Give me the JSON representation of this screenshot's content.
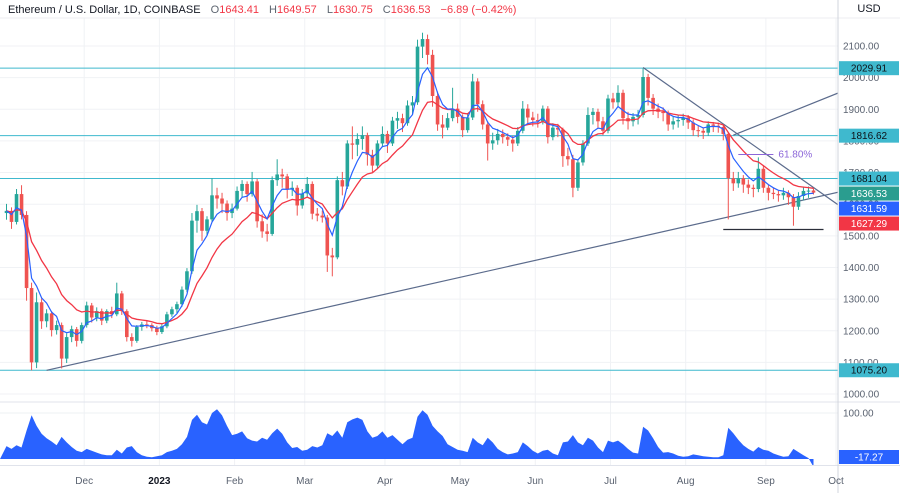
{
  "header": {
    "title": "Ethereum / U.S. Dollar, 1D, COINBASE",
    "o_label": "O",
    "o": "1643.41",
    "h_label": "H",
    "h": "1649.57",
    "l_label": "L",
    "l": "1630.75",
    "c_label": "C",
    "c": "1636.53",
    "change": "−6.89 (−0.42%)"
  },
  "axis": {
    "currency": "USD",
    "price_ticks": [
      2100,
      2000,
      1900,
      1800,
      1700,
      1600,
      1500,
      1400,
      1300,
      1200,
      1100,
      1000
    ],
    "osc_ticks": [
      100
    ],
    "months": [
      {
        "label": "Dec",
        "bar": 17
      },
      {
        "label": "2023",
        "bar": 32,
        "bold": true
      },
      {
        "label": "Feb",
        "bar": 47
      },
      {
        "label": "Mar",
        "bar": 61
      },
      {
        "label": "Apr",
        "bar": 77
      },
      {
        "label": "May",
        "bar": 92
      },
      {
        "label": "Jun",
        "bar": 107
      },
      {
        "label": "Jul",
        "bar": 122
      },
      {
        "label": "Aug",
        "bar": 137
      },
      {
        "label": "Sep",
        "bar": 153
      },
      {
        "label": "Oct",
        "bar": 167
      }
    ]
  },
  "chart_data": [
    {
      "type": "candlestick",
      "title": "Ethereum / U.S. Dollar, 1D, COINBASE",
      "x_unit": "2-day bars, Nov 2022 - Sep 2023",
      "ylim": [
        980,
        2190
      ],
      "up_color": "#26a69a",
      "down_color": "#ef5350",
      "ohlc": [
        [
          1572,
          1601,
          1551,
          1579
        ],
        [
          1579,
          1590,
          1522,
          1544
        ],
        [
          1544,
          1648,
          1536,
          1632
        ],
        [
          1632,
          1660,
          1552,
          1566
        ],
        [
          1566,
          1578,
          1295,
          1335
        ],
        [
          1335,
          1352,
          1075,
          1100
        ],
        [
          1100,
          1321,
          1082,
          1290
        ],
        [
          1290,
          1302,
          1206,
          1230
        ],
        [
          1230,
          1268,
          1211,
          1255
        ],
        [
          1255,
          1262,
          1182,
          1202
        ],
        [
          1202,
          1232,
          1188,
          1218
        ],
        [
          1218,
          1226,
          1081,
          1112
        ],
        [
          1112,
          1192,
          1098,
          1180
        ],
        [
          1180,
          1216,
          1164,
          1205
        ],
        [
          1205,
          1212,
          1150,
          1168
        ],
        [
          1168,
          1226,
          1160,
          1218
        ],
        [
          1218,
          1292,
          1210,
          1280
        ],
        [
          1280,
          1288,
          1226,
          1242
        ],
        [
          1242,
          1274,
          1230,
          1262
        ],
        [
          1262,
          1270,
          1218,
          1232
        ],
        [
          1232,
          1268,
          1224,
          1262
        ],
        [
          1262,
          1276,
          1240,
          1252
        ],
        [
          1252,
          1352,
          1246,
          1318
        ],
        [
          1318,
          1326,
          1250,
          1262
        ],
        [
          1262,
          1268,
          1166,
          1180
        ],
        [
          1180,
          1192,
          1150,
          1168
        ],
        [
          1168,
          1218,
          1162,
          1212
        ],
        [
          1212,
          1228,
          1200,
          1220
        ],
        [
          1220,
          1230,
          1208,
          1218
        ],
        [
          1218,
          1224,
          1198,
          1208
        ],
        [
          1208,
          1216,
          1186,
          1196
        ],
        [
          1196,
          1222,
          1190,
          1214
        ],
        [
          1214,
          1260,
          1208,
          1252
        ],
        [
          1252,
          1276,
          1244,
          1268
        ],
        [
          1268,
          1292,
          1256,
          1284
        ],
        [
          1284,
          1340,
          1276,
          1330
        ],
        [
          1330,
          1398,
          1322,
          1388
        ],
        [
          1388,
          1572,
          1380,
          1548
        ],
        [
          1548,
          1598,
          1510,
          1578
        ],
        [
          1578,
          1588,
          1484,
          1516
        ],
        [
          1516,
          1562,
          1500,
          1552
        ],
        [
          1552,
          1682,
          1544,
          1628
        ],
        [
          1628,
          1652,
          1586,
          1618
        ],
        [
          1618,
          1636,
          1572,
          1602
        ],
        [
          1602,
          1612,
          1548,
          1572
        ],
        [
          1572,
          1602,
          1556,
          1586
        ],
        [
          1586,
          1656,
          1580,
          1642
        ],
        [
          1642,
          1676,
          1622,
          1664
        ],
        [
          1664,
          1672,
          1608,
          1632
        ],
        [
          1632,
          1702,
          1624,
          1672
        ],
        [
          1672,
          1680,
          1526,
          1546
        ],
        [
          1546,
          1568,
          1494,
          1514
        ],
        [
          1514,
          1538,
          1482,
          1506
        ],
        [
          1506,
          1688,
          1500,
          1676
        ],
        [
          1676,
          1742,
          1658,
          1694
        ],
        [
          1694,
          1712,
          1652,
          1688
        ],
        [
          1688,
          1696,
          1618,
          1646
        ],
        [
          1646,
          1672,
          1626,
          1652
        ],
        [
          1652,
          1660,
          1564,
          1596
        ],
        [
          1596,
          1648,
          1586,
          1634
        ],
        [
          1634,
          1686,
          1622,
          1664
        ],
        [
          1664,
          1672,
          1552,
          1570
        ],
        [
          1570,
          1588,
          1546,
          1564
        ],
        [
          1564,
          1580,
          1542,
          1558
        ],
        [
          1558,
          1566,
          1386,
          1438
        ],
        [
          1438,
          1462,
          1372,
          1432
        ],
        [
          1432,
          1688,
          1426,
          1676
        ],
        [
          1676,
          1702,
          1628,
          1656
        ],
        [
          1656,
          1802,
          1648,
          1792
        ],
        [
          1792,
          1846,
          1742,
          1788
        ],
        [
          1788,
          1824,
          1752,
          1806
        ],
        [
          1806,
          1846,
          1772,
          1818
        ],
        [
          1818,
          1826,
          1722,
          1756
        ],
        [
          1756,
          1772,
          1702,
          1722
        ],
        [
          1722,
          1802,
          1714,
          1792
        ],
        [
          1792,
          1846,
          1780,
          1822
        ],
        [
          1822,
          1832,
          1762,
          1792
        ],
        [
          1792,
          1876,
          1784,
          1864
        ],
        [
          1864,
          1892,
          1838,
          1872
        ],
        [
          1872,
          1886,
          1828,
          1856
        ],
        [
          1856,
          1928,
          1848,
          1912
        ],
        [
          1912,
          1942,
          1884,
          1922
        ],
        [
          1922,
          2120,
          1914,
          2098
        ],
        [
          2098,
          2142,
          2062,
          2122
        ],
        [
          2122,
          2136,
          2042,
          2072
        ],
        [
          2072,
          2088,
          1908,
          1942
        ],
        [
          1942,
          1956,
          1832,
          1852
        ],
        [
          1852,
          1882,
          1808,
          1842
        ],
        [
          1842,
          1888,
          1834,
          1872
        ],
        [
          1872,
          1968,
          1862,
          1902
        ],
        [
          1902,
          1918,
          1856,
          1876
        ],
        [
          1876,
          1884,
          1812,
          1834
        ],
        [
          1834,
          1888,
          1826,
          1874
        ],
        [
          1874,
          2012,
          1866,
          1988
        ],
        [
          1988,
          1998,
          1892,
          1916
        ],
        [
          1916,
          1928,
          1836,
          1852
        ],
        [
          1852,
          1862,
          1738,
          1792
        ],
        [
          1792,
          1826,
          1772,
          1802
        ],
        [
          1802,
          1838,
          1788,
          1822
        ],
        [
          1822,
          1836,
          1792,
          1812
        ],
        [
          1812,
          1824,
          1784,
          1804
        ],
        [
          1804,
          1816,
          1766,
          1792
        ],
        [
          1792,
          1844,
          1784,
          1832
        ],
        [
          1832,
          1926,
          1824,
          1902
        ],
        [
          1902,
          1916,
          1856,
          1874
        ],
        [
          1874,
          1892,
          1846,
          1866
        ],
        [
          1866,
          1886,
          1842,
          1862
        ],
        [
          1862,
          1912,
          1852,
          1902
        ],
        [
          1902,
          1910,
          1792,
          1812
        ],
        [
          1812,
          1856,
          1802,
          1842
        ],
        [
          1842,
          1854,
          1812,
          1836
        ],
        [
          1836,
          1842,
          1718,
          1752
        ],
        [
          1752,
          1778,
          1722,
          1742
        ],
        [
          1742,
          1756,
          1622,
          1652
        ],
        [
          1652,
          1742,
          1642,
          1732
        ],
        [
          1732,
          1802,
          1722,
          1792
        ],
        [
          1792,
          1906,
          1784,
          1882
        ],
        [
          1882,
          1904,
          1852,
          1892
        ],
        [
          1892,
          1902,
          1842,
          1862
        ],
        [
          1862,
          1876,
          1818,
          1832
        ],
        [
          1832,
          1946,
          1824,
          1934
        ],
        [
          1934,
          1952,
          1902,
          1922
        ],
        [
          1922,
          1976,
          1908,
          1952
        ],
        [
          1952,
          1962,
          1852,
          1872
        ],
        [
          1872,
          1892,
          1836,
          1862
        ],
        [
          1862,
          1888,
          1846,
          1876
        ],
        [
          1876,
          1898,
          1852,
          1882
        ],
        [
          1882,
          2029,
          1874,
          2002
        ],
        [
          2002,
          2012,
          1912,
          1936
        ],
        [
          1936,
          1948,
          1882,
          1902
        ],
        [
          1902,
          1918,
          1872,
          1892
        ],
        [
          1892,
          1906,
          1862,
          1888
        ],
        [
          1888,
          1896,
          1832,
          1852
        ],
        [
          1852,
          1878,
          1836,
          1862
        ],
        [
          1862,
          1882,
          1842,
          1866
        ],
        [
          1866,
          1886,
          1848,
          1874
        ],
        [
          1874,
          1882,
          1838,
          1858
        ],
        [
          1858,
          1868,
          1816,
          1834
        ],
        [
          1834,
          1848,
          1812,
          1832
        ],
        [
          1832,
          1842,
          1806,
          1826
        ],
        [
          1826,
          1862,
          1816,
          1852
        ],
        [
          1852,
          1860,
          1828,
          1848
        ],
        [
          1848,
          1858,
          1826,
          1844
        ],
        [
          1844,
          1852,
          1802,
          1822
        ],
        [
          1822,
          1828,
          1552,
          1682
        ],
        [
          1682,
          1702,
          1642,
          1666
        ],
        [
          1666,
          1702,
          1652,
          1682
        ],
        [
          1682,
          1692,
          1636,
          1662
        ],
        [
          1662,
          1678,
          1632,
          1652
        ],
        [
          1652,
          1662,
          1622,
          1648
        ],
        [
          1648,
          1748,
          1638,
          1712
        ],
        [
          1712,
          1722,
          1636,
          1652
        ],
        [
          1652,
          1662,
          1612,
          1636
        ],
        [
          1636,
          1652,
          1616,
          1632
        ],
        [
          1632,
          1642,
          1608,
          1628
        ],
        [
          1628,
          1652,
          1614,
          1636
        ],
        [
          1636,
          1644,
          1598,
          1622
        ],
        [
          1622,
          1632,
          1532,
          1592
        ],
        [
          1592,
          1638,
          1582,
          1626
        ],
        [
          1626,
          1656,
          1612,
          1642
        ],
        [
          1642,
          1656,
          1620,
          1643
        ],
        [
          1643.41,
          1649.57,
          1630.75,
          1636.53
        ]
      ],
      "ma_fast": {
        "name": "fast MA",
        "period": 5,
        "color": "#2962ff",
        "last": 1631.59
      },
      "ma_slow": {
        "name": "slow MA",
        "period": 13,
        "color": "#f23645",
        "last": 1627.29
      },
      "levels": [
        2029.91,
        1816.62,
        1681.04,
        1075.2
      ],
      "level_color": "#3fb9ce",
      "last_price": 1636.53,
      "trendlines": [
        {
          "name": "ascending-support",
          "from_bar": 9,
          "from_price": 1075,
          "to_bar": 167,
          "to_price": 1638
        },
        {
          "name": "descending-resistance",
          "from_bar": 128,
          "from_price": 2032,
          "to_bar": 167,
          "to_price": 1597
        },
        {
          "name": "ascending-upper-right",
          "from_bar": 146,
          "from_price": 1818,
          "to_bar": 167,
          "to_price": 1952
        }
      ],
      "trendline_color": "#5b6b8c",
      "fib": {
        "label": "61.80%",
        "price": 1757,
        "from_bar": 147,
        "to_bar": 154,
        "color": "#8c66d9"
      },
      "support_segment": {
        "price": 1520,
        "from_bar": 144,
        "to_bar": 164,
        "color": "#2a2e39"
      },
      "price_labels": [
        {
          "text": "2029.91",
          "price": 2029.91,
          "bg": "#3fb9ce",
          "fg": "#0d1117"
        },
        {
          "text": "1816.62",
          "price": 1816.62,
          "bg": "#3fb9ce",
          "fg": "#0d1117"
        },
        {
          "text": "1681.04",
          "price": 1681.04,
          "bg": "#3fb9ce",
          "fg": "#0d1117"
        },
        {
          "text": "1636.53",
          "price": 1636.53,
          "bg": "#2a9d8f",
          "fg": "#ffffff"
        },
        {
          "text": "1631.59",
          "price": 1631.59,
          "bg": "#2962ff",
          "fg": "#ffffff"
        },
        {
          "text": "1627.29",
          "price": 1627.29,
          "bg": "#f23645",
          "fg": "#ffffff"
        },
        {
          "text": "1075.20",
          "price": 1075.2,
          "bg": "#3fb9ce",
          "fg": "#0d1117"
        }
      ]
    },
    {
      "type": "area",
      "name": "lower-oscillator",
      "color": "#2962ff",
      "baseline": 0,
      "ylim": [
        -20,
        120
      ],
      "last": -17.27,
      "last_label": {
        "text": "-17.27",
        "bg": "#2962ff",
        "fg": "#ffffff"
      },
      "values": [
        28,
        22,
        30,
        25,
        62,
        95,
        72,
        55,
        45,
        38,
        30,
        48,
        36,
        26,
        18,
        15,
        22,
        18,
        14,
        10,
        8,
        8,
        20,
        12,
        25,
        28,
        15,
        8,
        5,
        4,
        6,
        8,
        15,
        18,
        22,
        32,
        48,
        85,
        96,
        80,
        75,
        100,
        108,
        95,
        72,
        52,
        55,
        60,
        45,
        40,
        38,
        46,
        42,
        56,
        66,
        55,
        36,
        24,
        26,
        18,
        20,
        28,
        25,
        30,
        56,
        50,
        62,
        46,
        80,
        86,
        90,
        85,
        60,
        46,
        50,
        60,
        46,
        52,
        42,
        32,
        42,
        46,
        92,
        106,
        96,
        72,
        60,
        50,
        32,
        26,
        20,
        18,
        15,
        46,
        36,
        30,
        46,
        36,
        22,
        15,
        10,
        12,
        15,
        36,
        28,
        18,
        12,
        18,
        20,
        12,
        8,
        36,
        38,
        52,
        36,
        30,
        46,
        40,
        25,
        15,
        40,
        36,
        40,
        32,
        22,
        14,
        12,
        70,
        62,
        45,
        26,
        14,
        15,
        12,
        7,
        5,
        6,
        10,
        8,
        6,
        5,
        4,
        4,
        8,
        68,
        56,
        42,
        30,
        22,
        16,
        26,
        20,
        18,
        12,
        8,
        5,
        6,
        22,
        15,
        8,
        2,
        -17.27
      ]
    }
  ]
}
